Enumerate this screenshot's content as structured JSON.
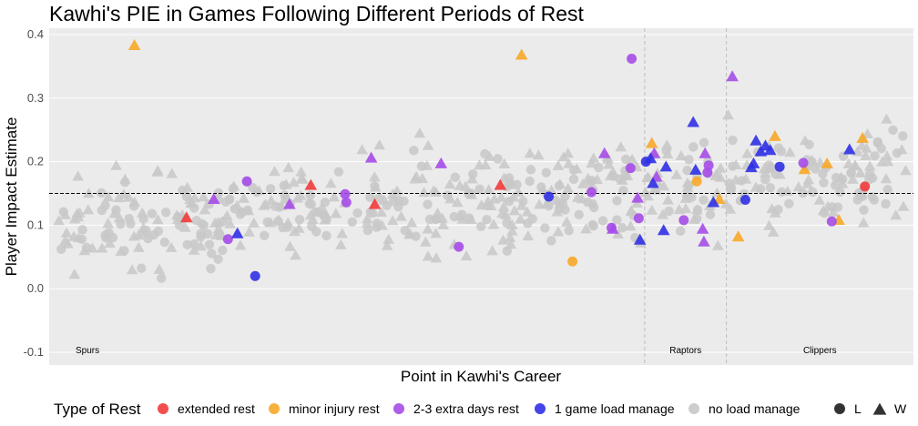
{
  "chart_data": {
    "type": "scatter",
    "title": "Kawhi's PIE in Games Following Different Periods of Rest",
    "xlabel": "Point in Kawhi's Career",
    "ylabel": "Player Impact Estimate",
    "xlim": [
      0,
      730
    ],
    "ylim": [
      -0.12,
      0.41
    ],
    "yticks": [
      "0.4",
      "0.3",
      "0.2",
      "0.1",
      "0.0",
      "-0.1"
    ],
    "reference_line": 0.15,
    "eras": [
      {
        "label": "Spurs",
        "start": 0,
        "end": 503
      },
      {
        "label": "Raptors",
        "start": 503,
        "end": 572
      },
      {
        "label": "Clippers",
        "start": 572,
        "end": 730
      }
    ],
    "legend": {
      "title": "Type of Rest",
      "items": [
        {
          "label": "extended rest",
          "color": "#f23b3b"
        },
        {
          "label": "minor injury rest",
          "color": "#f7a928"
        },
        {
          "label": "2-3 extra days rest",
          "color": "#a64de8"
        },
        {
          "label": "1 game load manage",
          "color": "#3030e6"
        },
        {
          "label": "no load manage",
          "color": "#c8c8c8"
        }
      ],
      "shapes": [
        {
          "label": "L",
          "shape": "circle"
        },
        {
          "label": "W",
          "shape": "triangle"
        }
      ]
    },
    "series": [
      {
        "name": "extended rest",
        "color": "#f23b3b",
        "points": [
          {
            "x": 116,
            "y": 0.112,
            "result": "W"
          },
          {
            "x": 221,
            "y": 0.163,
            "result": "W"
          },
          {
            "x": 275,
            "y": 0.133,
            "result": "W"
          },
          {
            "x": 381,
            "y": 0.163,
            "result": "W"
          },
          {
            "x": 689,
            "y": 0.161,
            "result": "L"
          }
        ]
      },
      {
        "name": "minor injury rest",
        "color": "#f7a928",
        "points": [
          {
            "x": 72,
            "y": 0.383,
            "result": "W"
          },
          {
            "x": 399,
            "y": 0.368,
            "result": "W"
          },
          {
            "x": 442,
            "y": 0.043,
            "result": "L"
          },
          {
            "x": 509,
            "y": 0.229,
            "result": "W"
          },
          {
            "x": 547,
            "y": 0.169,
            "result": "L"
          },
          {
            "x": 566,
            "y": 0.141,
            "result": "W"
          },
          {
            "x": 582,
            "y": 0.082,
            "result": "W"
          },
          {
            "x": 613,
            "y": 0.24,
            "result": "W"
          },
          {
            "x": 638,
            "y": 0.188,
            "result": "W"
          },
          {
            "x": 657,
            "y": 0.197,
            "result": "W"
          },
          {
            "x": 667,
            "y": 0.108,
            "result": "W"
          },
          {
            "x": 687,
            "y": 0.237,
            "result": "W"
          }
        ]
      },
      {
        "name": "2-3 extra days rest",
        "color": "#a64de8",
        "points": [
          {
            "x": 139,
            "y": 0.141,
            "result": "W"
          },
          {
            "x": 151,
            "y": 0.078,
            "result": "L"
          },
          {
            "x": 167,
            "y": 0.169,
            "result": "L"
          },
          {
            "x": 203,
            "y": 0.133,
            "result": "W"
          },
          {
            "x": 250,
            "y": 0.149,
            "result": "L"
          },
          {
            "x": 251,
            "y": 0.136,
            "result": "L"
          },
          {
            "x": 272,
            "y": 0.206,
            "result": "W"
          },
          {
            "x": 331,
            "y": 0.197,
            "result": "W"
          },
          {
            "x": 346,
            "y": 0.066,
            "result": "L"
          },
          {
            "x": 458,
            "y": 0.152,
            "result": "L"
          },
          {
            "x": 469,
            "y": 0.213,
            "result": "W"
          },
          {
            "x": 475,
            "y": 0.096,
            "result": "L"
          },
          {
            "x": 476,
            "y": 0.094,
            "result": "W"
          },
          {
            "x": 491,
            "y": 0.19,
            "result": "L"
          },
          {
            "x": 492,
            "y": 0.362,
            "result": "L"
          },
          {
            "x": 497,
            "y": 0.143,
            "result": "W"
          },
          {
            "x": 498,
            "y": 0.111,
            "result": "L"
          },
          {
            "x": 511,
            "y": 0.213,
            "result": "W"
          },
          {
            "x": 513,
            "y": 0.176,
            "result": "W"
          },
          {
            "x": 536,
            "y": 0.108,
            "result": "L"
          },
          {
            "x": 552,
            "y": 0.094,
            "result": "W"
          },
          {
            "x": 553,
            "y": 0.074,
            "result": "W"
          },
          {
            "x": 554,
            "y": 0.213,
            "result": "W"
          },
          {
            "x": 556,
            "y": 0.183,
            "result": "L"
          },
          {
            "x": 557,
            "y": 0.194,
            "result": "L"
          },
          {
            "x": 577,
            "y": 0.334,
            "result": "W"
          },
          {
            "x": 637,
            "y": 0.198,
            "result": "L"
          },
          {
            "x": 661,
            "y": 0.106,
            "result": "L"
          }
        ]
      },
      {
        "name": "1 game load manage",
        "color": "#3030e6",
        "points": [
          {
            "x": 159,
            "y": 0.087,
            "result": "W"
          },
          {
            "x": 174,
            "y": 0.02,
            "result": "L"
          },
          {
            "x": 422,
            "y": 0.145,
            "result": "L"
          },
          {
            "x": 499,
            "y": 0.077,
            "result": "W"
          },
          {
            "x": 504,
            "y": 0.2,
            "result": "L"
          },
          {
            "x": 508,
            "y": 0.205,
            "result": "W"
          },
          {
            "x": 510,
            "y": 0.166,
            "result": "W"
          },
          {
            "x": 519,
            "y": 0.092,
            "result": "W"
          },
          {
            "x": 521,
            "y": 0.192,
            "result": "W"
          },
          {
            "x": 544,
            "y": 0.262,
            "result": "W"
          },
          {
            "x": 546,
            "y": 0.187,
            "result": "W"
          },
          {
            "x": 561,
            "y": 0.136,
            "result": "W"
          },
          {
            "x": 588,
            "y": 0.14,
            "result": "L"
          },
          {
            "x": 593,
            "y": 0.191,
            "result": "W"
          },
          {
            "x": 595,
            "y": 0.197,
            "result": "W"
          },
          {
            "x": 597,
            "y": 0.233,
            "result": "W"
          },
          {
            "x": 601,
            "y": 0.216,
            "result": "W"
          },
          {
            "x": 605,
            "y": 0.225,
            "result": "W"
          },
          {
            "x": 609,
            "y": 0.218,
            "result": "W"
          },
          {
            "x": 617,
            "y": 0.192,
            "result": "L"
          },
          {
            "x": 676,
            "y": 0.219,
            "result": "W"
          }
        ]
      },
      {
        "name": "no load manage",
        "color": "#c8c8c8",
        "points": []
      }
    ]
  }
}
